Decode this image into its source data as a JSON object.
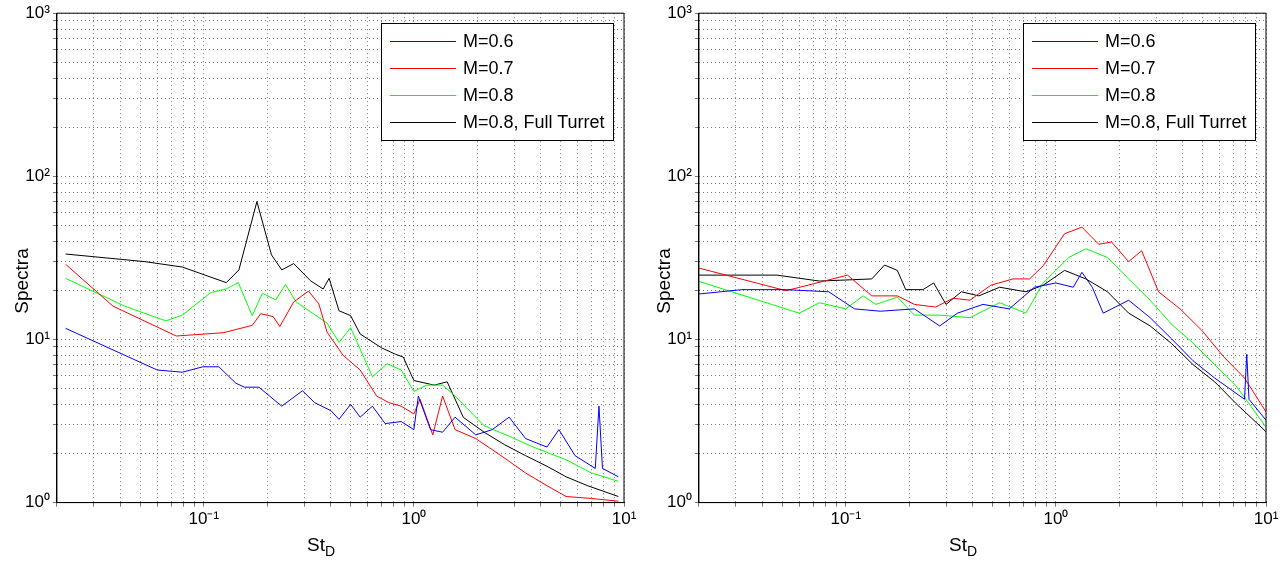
{
  "chart_data": [
    {
      "type": "line",
      "xlabel": "St$_{D}$",
      "ylabel": "Spectra",
      "log": "xy",
      "xlim": [
        0.02,
        10
      ],
      "ylim": [
        1,
        1000
      ],
      "xticks": [
        {
          "value": 0.02,
          "label": null
        },
        {
          "value": 0.03,
          "label": null
        },
        {
          "value": 0.04,
          "label": null
        },
        {
          "value": 0.05,
          "label": null
        },
        {
          "value": 0.06,
          "label": null
        },
        {
          "value": 0.07,
          "label": null
        },
        {
          "value": 0.08,
          "label": null
        },
        {
          "value": 0.09,
          "label": null
        },
        {
          "value": 0.1,
          "label": "10⁻¹"
        },
        {
          "value": 0.2,
          "label": null
        },
        {
          "value": 0.3,
          "label": null
        },
        {
          "value": 0.4,
          "label": null
        },
        {
          "value": 0.5,
          "label": null
        },
        {
          "value": 0.6,
          "label": null
        },
        {
          "value": 0.7,
          "label": null
        },
        {
          "value": 0.8,
          "label": null
        },
        {
          "value": 0.9,
          "label": null
        },
        {
          "value": 1,
          "label": "10⁰"
        },
        {
          "value": 2,
          "label": null
        },
        {
          "value": 3,
          "label": null
        },
        {
          "value": 4,
          "label": null
        },
        {
          "value": 5,
          "label": null
        },
        {
          "value": 6,
          "label": null
        },
        {
          "value": 7,
          "label": null
        },
        {
          "value": 8,
          "label": null
        },
        {
          "value": 9,
          "label": null
        },
        {
          "value": 10,
          "label": "10¹"
        }
      ],
      "yticks": [
        {
          "value": 1,
          "label": "10⁰"
        },
        {
          "value": 2,
          "label": null
        },
        {
          "value": 3,
          "label": null
        },
        {
          "value": 4,
          "label": null
        },
        {
          "value": 5,
          "label": null
        },
        {
          "value": 6,
          "label": null
        },
        {
          "value": 7,
          "label": null
        },
        {
          "value": 8,
          "label": null
        },
        {
          "value": 9,
          "label": null
        },
        {
          "value": 10,
          "label": "10¹"
        },
        {
          "value": 20,
          "label": null
        },
        {
          "value": 30,
          "label": null
        },
        {
          "value": 40,
          "label": null
        },
        {
          "value": 50,
          "label": null
        },
        {
          "value": 60,
          "label": null
        },
        {
          "value": 70,
          "label": null
        },
        {
          "value": 80,
          "label": null
        },
        {
          "value": 90,
          "label": null
        },
        {
          "value": 100,
          "label": "10²"
        },
        {
          "value": 200,
          "label": null
        },
        {
          "value": 300,
          "label": null
        },
        {
          "value": 400,
          "label": null
        },
        {
          "value": 500,
          "label": null
        },
        {
          "value": 600,
          "label": null
        },
        {
          "value": 700,
          "label": null
        },
        {
          "value": 800,
          "label": null
        },
        {
          "value": 900,
          "label": null
        },
        {
          "value": 1000,
          "label": "10³"
        }
      ],
      "grid": true,
      "legend": "top right",
      "marker": "none",
      "line_style": "solid",
      "series": [
        {
          "name": "M=0.6",
          "color": "#0000ff",
          "x": [
            0.022,
            0.06,
            0.079,
            0.099,
            0.118,
            0.142,
            0.156,
            0.183,
            0.235,
            0.295,
            0.337,
            0.404,
            0.44,
            0.5,
            0.555,
            0.635,
            0.73,
            0.87,
            1.0,
            1.05,
            1.2,
            1.37,
            1.57,
            1.97,
            2.36,
            2.84,
            3.4,
            4.3,
            4.9,
            5.85,
            7.3,
            7.6,
            7.9,
            9.4
          ],
          "values": [
            11.7,
            6.5,
            6.3,
            6.8,
            6.8,
            5.4,
            5.1,
            5.1,
            3.9,
            4.85,
            4.1,
            3.65,
            3.24,
            4.0,
            3.34,
            3.9,
            3.05,
            3.14,
            2.8,
            4.5,
            2.8,
            2.7,
            3.34,
            2.6,
            2.8,
            3.34,
            2.47,
            2.19,
            2.8,
            1.94,
            1.62,
            3.9,
            1.62,
            1.44
          ]
        },
        {
          "name": "M=0.7",
          "color": "#ff0000",
          "x": [
            0.022,
            0.037,
            0.074,
            0.124,
            0.17,
            0.187,
            0.214,
            0.23,
            0.268,
            0.315,
            0.353,
            0.386,
            0.46,
            0.555,
            0.665,
            0.76,
            0.87,
            1.0,
            1.07,
            1.23,
            1.37,
            1.57,
            1.97,
            2.6,
            3.4,
            4.3,
            5.3,
            7.0,
            9.4
          ],
          "values": [
            28.9,
            16,
            10.5,
            11.0,
            12.2,
            14.4,
            13.8,
            12.0,
            17.0,
            19.8,
            16.5,
            11.1,
            8.0,
            6.5,
            4.5,
            4.1,
            3.9,
            3.5,
            4.3,
            2.6,
            4.5,
            2.8,
            2.47,
            1.94,
            1.52,
            1.27,
            1.09,
            1.06,
            1.02
          ]
        },
        {
          "name": "M=0.8",
          "color": "#00ff00",
          "x": [
            0.022,
            0.042,
            0.066,
            0.079,
            0.108,
            0.128,
            0.146,
            0.17,
            0.19,
            0.22,
            0.245,
            0.275,
            0.337,
            0.386,
            0.44,
            0.5,
            0.635,
            0.745,
            0.87,
            1.0,
            1.15,
            1.37,
            1.57,
            2.16,
            2.84,
            3.7,
            5.3,
            7.0,
            9.4
          ],
          "values": [
            23.7,
            16,
            13.0,
            14.1,
            19.4,
            20.4,
            22.3,
            14.0,
            19.2,
            17.5,
            21.7,
            17.0,
            14.2,
            12.6,
            9.6,
            11.8,
            5.9,
            7.1,
            6.5,
            4.8,
            5.25,
            5.25,
            4.5,
            2.96,
            2.55,
            2.19,
            1.83,
            1.52,
            1.35
          ]
        },
        {
          "name": "M=0.8, Full Turret",
          "color": "#000000",
          "x": [
            0.022,
            0.0524,
            0.079,
            0.128,
            0.147,
            0.179,
            0.21,
            0.235,
            0.268,
            0.322,
            0.37,
            0.395,
            0.44,
            0.5,
            0.555,
            0.7,
            0.82,
            0.89,
            1.0,
            1.25,
            1.44,
            1.72,
            2.16,
            2.71,
            3.4,
            4.3,
            5.3,
            6.7,
            9.4
          ],
          "values": [
            33.4,
            30,
            27.8,
            22.3,
            26.7,
            70,
            33,
            26.7,
            29.2,
            22.9,
            20.4,
            23.7,
            15,
            14.0,
            10.8,
            8.9,
            8.1,
            7.8,
            5.6,
            5.25,
            5.5,
            3.33,
            2.7,
            2.26,
            1.94,
            1.67,
            1.44,
            1.27,
            1.09
          ]
        }
      ]
    },
    {
      "type": "line",
      "xlabel": "St$_{D}$",
      "ylabel": "Spectra",
      "log": "xy",
      "xlim": [
        0.02,
        10
      ],
      "ylim": [
        1,
        1000
      ],
      "xticks": [
        {
          "value": 0.02,
          "label": null
        },
        {
          "value": 0.03,
          "label": null
        },
        {
          "value": 0.04,
          "label": null
        },
        {
          "value": 0.05,
          "label": null
        },
        {
          "value": 0.06,
          "label": null
        },
        {
          "value": 0.07,
          "label": null
        },
        {
          "value": 0.08,
          "label": null
        },
        {
          "value": 0.09,
          "label": null
        },
        {
          "value": 0.1,
          "label": "10⁻¹"
        },
        {
          "value": 0.2,
          "label": null
        },
        {
          "value": 0.3,
          "label": null
        },
        {
          "value": 0.4,
          "label": null
        },
        {
          "value": 0.5,
          "label": null
        },
        {
          "value": 0.6,
          "label": null
        },
        {
          "value": 0.7,
          "label": null
        },
        {
          "value": 0.8,
          "label": null
        },
        {
          "value": 0.9,
          "label": null
        },
        {
          "value": 1,
          "label": "10⁰"
        },
        {
          "value": 2,
          "label": null
        },
        {
          "value": 3,
          "label": null
        },
        {
          "value": 4,
          "label": null
        },
        {
          "value": 5,
          "label": null
        },
        {
          "value": 6,
          "label": null
        },
        {
          "value": 7,
          "label": null
        },
        {
          "value": 8,
          "label": null
        },
        {
          "value": 9,
          "label": null
        },
        {
          "value": 10,
          "label": "10¹"
        }
      ],
      "yticks": [
        {
          "value": 1,
          "label": "10⁰"
        },
        {
          "value": 2,
          "label": null
        },
        {
          "value": 3,
          "label": null
        },
        {
          "value": 4,
          "label": null
        },
        {
          "value": 5,
          "label": null
        },
        {
          "value": 6,
          "label": null
        },
        {
          "value": 7,
          "label": null
        },
        {
          "value": 8,
          "label": null
        },
        {
          "value": 9,
          "label": null
        },
        {
          "value": 10,
          "label": "10¹"
        },
        {
          "value": 20,
          "label": null
        },
        {
          "value": 30,
          "label": null
        },
        {
          "value": 40,
          "label": null
        },
        {
          "value": 50,
          "label": null
        },
        {
          "value": 60,
          "label": null
        },
        {
          "value": 70,
          "label": null
        },
        {
          "value": 80,
          "label": null
        },
        {
          "value": 90,
          "label": null
        },
        {
          "value": 100,
          "label": "10²"
        },
        {
          "value": 200,
          "label": null
        },
        {
          "value": 300,
          "label": null
        },
        {
          "value": 400,
          "label": null
        },
        {
          "value": 500,
          "label": null
        },
        {
          "value": 600,
          "label": null
        },
        {
          "value": 700,
          "label": null
        },
        {
          "value": 800,
          "label": null
        },
        {
          "value": 900,
          "label": null
        },
        {
          "value": 1000,
          "label": "10³"
        }
      ],
      "grid": true,
      "legend": "top right",
      "marker": "none",
      "line_style": "solid",
      "series": [
        {
          "name": "M=0.6",
          "color": "#0000ff",
          "x": [
            0.02,
            0.032,
            0.052,
            0.083,
            0.11,
            0.146,
            0.212,
            0.28,
            0.34,
            0.45,
            0.6,
            0.79,
            1.0,
            1.21,
            1.33,
            1.49,
            1.68,
            2.22,
            2.81,
            3.55,
            4.5,
            5.7,
            7.9,
            8.1,
            8.3,
            10
          ],
          "values": [
            19.0,
            20.2,
            20.2,
            19.6,
            15.4,
            14.9,
            15.4,
            12.1,
            14.5,
            16.4,
            15.4,
            20.9,
            22.2,
            20.9,
            25.8,
            20.9,
            14.5,
            17.4,
            13.6,
            10.1,
            7.4,
            5.8,
            4.3,
            8.1,
            4.3,
            3.2
          ]
        },
        {
          "name": "M=0.7",
          "color": "#ff0000",
          "x": [
            0.02,
            0.052,
            0.102,
            0.133,
            0.176,
            0.212,
            0.268,
            0.324,
            0.39,
            0.49,
            0.625,
            0.75,
            0.87,
            1.1,
            1.33,
            1.6,
            1.84,
            2.22,
            2.56,
            3.08,
            3.9,
            4.94,
            6.25,
            7.9,
            10
          ],
          "values": [
            27.4,
            19.9,
            24.8,
            18.5,
            18.5,
            16.4,
            15.8,
            17.9,
            17.4,
            21.5,
            23.5,
            23.5,
            28.3,
            44.5,
            48.8,
            38.3,
            39.6,
            30,
            35,
            19.6,
            15.4,
            11.4,
            7.9,
            5.8,
            3.6
          ]
        },
        {
          "name": "M=0.8",
          "color": "#00ff00",
          "x": [
            0.02,
            0.06,
            0.075,
            0.1,
            0.121,
            0.139,
            0.176,
            0.212,
            0.28,
            0.39,
            0.54,
            0.72,
            0.87,
            1.15,
            1.39,
            1.76,
            2.22,
            2.81,
            3.55,
            4.5,
            5.7,
            7.2,
            10
          ],
          "values": [
            22.7,
            14.5,
            16.8,
            15.4,
            18.5,
            16.4,
            18.2,
            14.1,
            14.1,
            13.6,
            16.8,
            14.5,
            22.2,
            31.8,
            36,
            31.8,
            23.5,
            17.4,
            12.4,
            9.5,
            7.0,
            5.2,
            2.9
          ]
        },
        {
          "name": "M=0.8, Full Turret",
          "color": "#000000",
          "x": [
            0.02,
            0.047,
            0.075,
            0.133,
            0.153,
            0.176,
            0.193,
            0.233,
            0.262,
            0.3,
            0.355,
            0.43,
            0.54,
            0.72,
            0.87,
            1.1,
            1.39,
            1.76,
            2.22,
            2.81,
            3.55,
            4.5,
            5.7,
            7.2,
            10
          ],
          "values": [
            24.8,
            24.8,
            22.8,
            23.5,
            28.6,
            26.5,
            20.2,
            20.2,
            22.2,
            16.4,
            19.6,
            18.5,
            20.9,
            19.6,
            21.5,
            26.5,
            23.5,
            19.6,
            14.5,
            12.1,
            9.45,
            7.0,
            5.5,
            4.05,
            2.72
          ]
        }
      ]
    }
  ]
}
